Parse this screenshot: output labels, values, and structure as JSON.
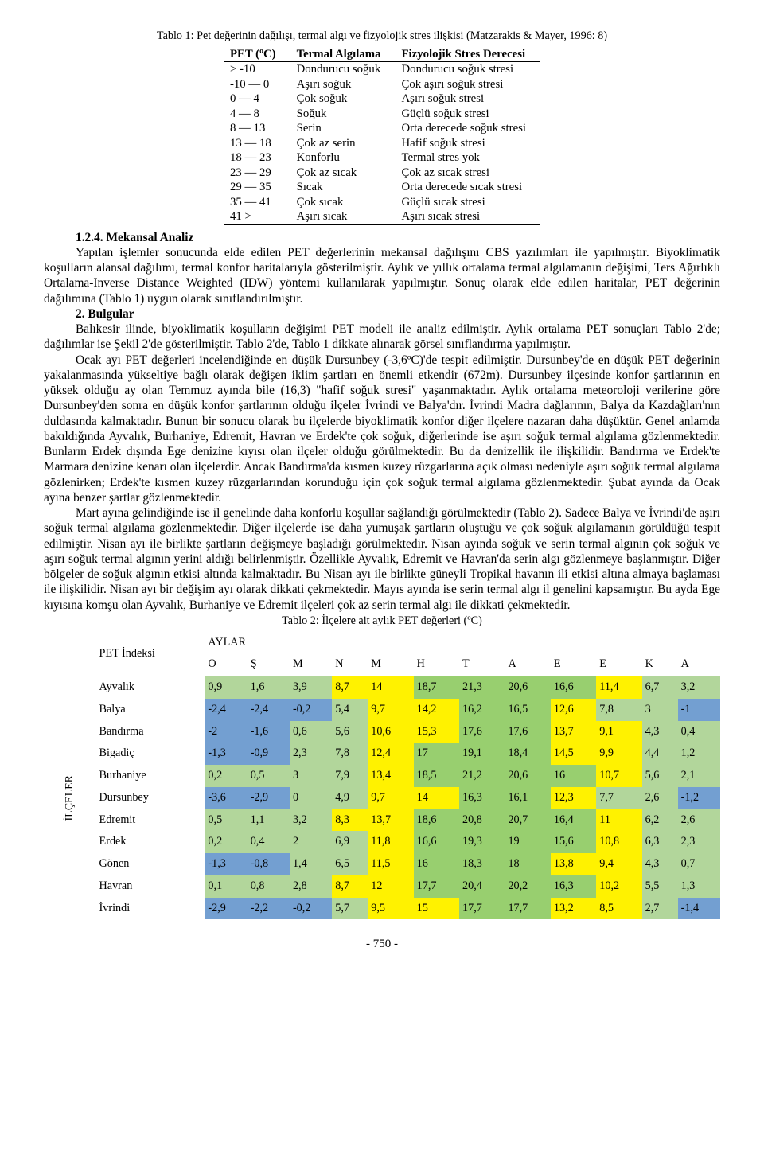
{
  "table1": {
    "caption": "Tablo 1: Pet değerinin dağılışı, termal algı ve fizyolojik stres ilişkisi (Matzarakis & Mayer, 1996: 8)",
    "headers": [
      "PET (ºC)",
      "Termal Algılama",
      "Fizyolojik Stres Derecesi"
    ],
    "rows": [
      [
        "> -10",
        "Dondurucu soğuk",
        "Dondurucu soğuk stresi"
      ],
      [
        "-10 — 0",
        "Aşırı soğuk",
        "Çok aşırı soğuk stresi"
      ],
      [
        "0 — 4",
        "Çok soğuk",
        "Aşırı soğuk stresi"
      ],
      [
        "4 — 8",
        "Soğuk",
        "Güçlü soğuk stresi"
      ],
      [
        "8 — 13",
        "Serin",
        "Orta derecede soğuk stresi"
      ],
      [
        "13 — 18",
        "Çok az serin",
        "Hafif soğuk stresi"
      ],
      [
        "18 — 23",
        "Konforlu",
        "Termal stres yok"
      ],
      [
        "23 — 29",
        "Çok az sıcak",
        "Çok az sıcak stresi"
      ],
      [
        "29 — 35",
        "Sıcak",
        "Orta derecede sıcak stresi"
      ],
      [
        "35 — 41",
        "Çok sıcak",
        "Güçlü sıcak stresi"
      ],
      [
        "41 >",
        "Aşırı sıcak",
        "Aşırı sıcak stresi"
      ]
    ]
  },
  "sec1_head": "1.2.4. Mekansal Analiz",
  "para1": "Yapılan işlemler sonucunda elde edilen PET değerlerinin mekansal dağılışını CBS yazılımları ile yapılmıştır. Biyoklimatik koşulların alansal dağılımı, termal konfor haritalarıyla gösterilmiştir. Aylık ve yıllık ortalama termal algılamanın değişimi, Ters Ağırlıklı Ortalama-Inverse Distance Weighted (IDW) yöntemi kullanılarak yapılmıştır. Sonuç olarak elde edilen haritalar, PET değerinin dağılımına (Tablo 1) uygun olarak sınıflandırılmıştır.",
  "sec2_head": "2. Bulgular",
  "para2": "Balıkesir ilinde, biyoklimatik koşulların değişimi PET modeli ile analiz edilmiştir. Aylık ortalama PET sonuçları Tablo 2'de; dağılımlar ise Şekil 2'de gösterilmiştir. Tablo 2'de, Tablo 1 dikkate alınarak görsel sınıflandırma yapılmıştır.",
  "para3": "Ocak ayı PET değerleri incelendiğinde en düşük Dursunbey (-3,6ºC)'de tespit edilmiştir. Dursunbey'de en düşük PET değerinin yakalanmasında yükseltiye bağlı olarak değişen iklim şartları en önemli etkendir (672m). Dursunbey ilçesinde konfor şartlarının en yüksek olduğu ay olan Temmuz ayında bile (16,3) \"hafif soğuk stresi\" yaşanmaktadır. Aylık ortalama meteoroloji verilerine göre Dursunbey'den sonra en düşük konfor şartlarının olduğu ilçeler İvrindi ve Balya'dır. İvrindi Madra dağlarının, Balya da Kazdağları'nın duldasında kalmaktadır. Bunun bir sonucu olarak bu ilçelerde biyoklimatik konfor diğer ilçelere nazaran daha düşüktür. Genel anlamda bakıldığında Ayvalık, Burhaniye, Edremit, Havran ve Erdek'te çok soğuk, diğerlerinde ise aşırı soğuk termal algılama gözlenmektedir. Bunların Erdek dışında Ege denizine kıyısı olan ilçeler olduğu görülmektedir. Bu da denizellik ile ilişkilidir. Bandırma ve Erdek'te Marmara denizine kenarı olan ilçelerdir. Ancak Bandırma'da kısmen kuzey rüzgarlarına açık olması nedeniyle aşırı soğuk termal algılama gözlenirken; Erdek'te kısmen kuzey rüzgarlarından korunduğu için çok soğuk termal algılama gözlenmektedir. Şubat ayında da Ocak ayına benzer şartlar gözlenmektedir.",
  "para4": "Mart ayına gelindiğinde ise il genelinde daha konforlu koşullar sağlandığı görülmektedir (Tablo 2). Sadece Balya ve İvrindi'de aşırı soğuk termal algılama gözlenmektedir. Diğer ilçelerde ise daha yumuşak şartların oluştuğu ve çok soğuk algılamanın görüldüğü tespit edilmiştir. Nisan ayı ile birlikte şartların değişmeye başladığı görülmektedir. Nisan ayında soğuk ve serin termal algının çok soğuk ve aşırı soğuk termal algının yerini aldığı belirlenmiştir. Özellikle Ayvalık, Edremit ve Havran'da serin algı gözlenmeye başlanmıştır. Diğer bölgeler de soğuk algının etkisi altında kalmaktadır. Bu Nisan ayı ile birlikte güneyli Tropikal havanın ili etkisi altına almaya başlaması ile ilişkilidir. Nisan ayı bir değişim ayı olarak dikkati çekmektedir. Mayıs ayında ise serin termal algı il genelini kapsamıştır. Bu ayda Ege kıyısına komşu olan Ayvalık, Burhaniye ve Edremit ilçeleri çok az serin termal algı ile dikkati çekmektedir.",
  "table2": {
    "caption": "Tablo 2: İlçelere ait aylık PET değerleri (ºC)",
    "side_label": "İLÇELER",
    "pet_label": "PET İndeksi",
    "aylar_label": "AYLAR",
    "months": [
      "O",
      "Ş",
      "M",
      "N",
      "M",
      "H",
      "T",
      "A",
      "E",
      "E",
      "K",
      "A"
    ],
    "rows": [
      {
        "name": "Ayvalık",
        "cells": [
          {
            "v": "0,9",
            "c": "#b2d69b"
          },
          {
            "v": "1,6",
            "c": "#b2d69b"
          },
          {
            "v": "3,9",
            "c": "#b2d69b"
          },
          {
            "v": "8,7",
            "c": "#fff200"
          },
          {
            "v": "14",
            "c": "#fff200"
          },
          {
            "v": "18,7",
            "c": "#98cf6f"
          },
          {
            "v": "21,3",
            "c": "#98cf6f"
          },
          {
            "v": "20,6",
            "c": "#98cf6f"
          },
          {
            "v": "16,6",
            "c": "#98cf6f"
          },
          {
            "v": "11,4",
            "c": "#fff200"
          },
          {
            "v": "6,7",
            "c": "#b2d69b"
          },
          {
            "v": "3,2",
            "c": "#b2d69b"
          }
        ]
      },
      {
        "name": "Balya",
        "cells": [
          {
            "v": "-2,4",
            "c": "#739fd1"
          },
          {
            "v": "-2,4",
            "c": "#739fd1"
          },
          {
            "v": "-0,2",
            "c": "#739fd1"
          },
          {
            "v": "5,4",
            "c": "#b2d69b"
          },
          {
            "v": "9,7",
            "c": "#fff200"
          },
          {
            "v": "14,2",
            "c": "#fff200"
          },
          {
            "v": "16,2",
            "c": "#98cf6f"
          },
          {
            "v": "16,5",
            "c": "#98cf6f"
          },
          {
            "v": "12,6",
            "c": "#fff200"
          },
          {
            "v": "7,8",
            "c": "#b2d69b"
          },
          {
            "v": "3",
            "c": "#b2d69b"
          },
          {
            "v": "-1",
            "c": "#739fd1"
          }
        ]
      },
      {
        "name": "Bandırma",
        "cells": [
          {
            "v": "-2",
            "c": "#739fd1"
          },
          {
            "v": "-1,6",
            "c": "#739fd1"
          },
          {
            "v": "0,6",
            "c": "#b2d69b"
          },
          {
            "v": "5,6",
            "c": "#b2d69b"
          },
          {
            "v": "10,6",
            "c": "#fff200"
          },
          {
            "v": "15,3",
            "c": "#fff200"
          },
          {
            "v": "17,6",
            "c": "#98cf6f"
          },
          {
            "v": "17,6",
            "c": "#98cf6f"
          },
          {
            "v": "13,7",
            "c": "#fff200"
          },
          {
            "v": "9,1",
            "c": "#fff200"
          },
          {
            "v": "4,3",
            "c": "#b2d69b"
          },
          {
            "v": "0,4",
            "c": "#b2d69b"
          }
        ]
      },
      {
        "name": "Bigadiç",
        "cells": [
          {
            "v": "-1,3",
            "c": "#739fd1"
          },
          {
            "v": "-0,9",
            "c": "#739fd1"
          },
          {
            "v": "2,3",
            "c": "#b2d69b"
          },
          {
            "v": "7,8",
            "c": "#b2d69b"
          },
          {
            "v": "12,4",
            "c": "#fff200"
          },
          {
            "v": "17",
            "c": "#98cf6f"
          },
          {
            "v": "19,1",
            "c": "#98cf6f"
          },
          {
            "v": "18,4",
            "c": "#98cf6f"
          },
          {
            "v": "14,5",
            "c": "#fff200"
          },
          {
            "v": "9,9",
            "c": "#fff200"
          },
          {
            "v": "4,4",
            "c": "#b2d69b"
          },
          {
            "v": "1,2",
            "c": "#b2d69b"
          }
        ]
      },
      {
        "name": "Burhaniye",
        "cells": [
          {
            "v": "0,2",
            "c": "#b2d69b"
          },
          {
            "v": "0,5",
            "c": "#b2d69b"
          },
          {
            "v": "3",
            "c": "#b2d69b"
          },
          {
            "v": "7,9",
            "c": "#b2d69b"
          },
          {
            "v": "13,4",
            "c": "#fff200"
          },
          {
            "v": "18,5",
            "c": "#98cf6f"
          },
          {
            "v": "21,2",
            "c": "#98cf6f"
          },
          {
            "v": "20,6",
            "c": "#98cf6f"
          },
          {
            "v": "16",
            "c": "#98cf6f"
          },
          {
            "v": "10,7",
            "c": "#fff200"
          },
          {
            "v": "5,6",
            "c": "#b2d69b"
          },
          {
            "v": "2,1",
            "c": "#b2d69b"
          }
        ]
      },
      {
        "name": "Dursunbey",
        "cells": [
          {
            "v": "-3,6",
            "c": "#739fd1"
          },
          {
            "v": "-2,9",
            "c": "#739fd1"
          },
          {
            "v": "0",
            "c": "#b2d69b"
          },
          {
            "v": "4,9",
            "c": "#b2d69b"
          },
          {
            "v": "9,7",
            "c": "#fff200"
          },
          {
            "v": "14",
            "c": "#fff200"
          },
          {
            "v": "16,3",
            "c": "#98cf6f"
          },
          {
            "v": "16,1",
            "c": "#98cf6f"
          },
          {
            "v": "12,3",
            "c": "#fff200"
          },
          {
            "v": "7,7",
            "c": "#b2d69b"
          },
          {
            "v": "2,6",
            "c": "#b2d69b"
          },
          {
            "v": "-1,2",
            "c": "#739fd1"
          }
        ]
      },
      {
        "name": "Edremit",
        "cells": [
          {
            "v": "0,5",
            "c": "#b2d69b"
          },
          {
            "v": "1,1",
            "c": "#b2d69b"
          },
          {
            "v": "3,2",
            "c": "#b2d69b"
          },
          {
            "v": "8,3",
            "c": "#fff200"
          },
          {
            "v": "13,7",
            "c": "#fff200"
          },
          {
            "v": "18,6",
            "c": "#98cf6f"
          },
          {
            "v": "20,8",
            "c": "#98cf6f"
          },
          {
            "v": "20,7",
            "c": "#98cf6f"
          },
          {
            "v": "16,4",
            "c": "#98cf6f"
          },
          {
            "v": "11",
            "c": "#fff200"
          },
          {
            "v": "6,2",
            "c": "#b2d69b"
          },
          {
            "v": "2,6",
            "c": "#b2d69b"
          }
        ]
      },
      {
        "name": "Erdek",
        "cells": [
          {
            "v": "0,2",
            "c": "#b2d69b"
          },
          {
            "v": "0,4",
            "c": "#b2d69b"
          },
          {
            "v": "2",
            "c": "#b2d69b"
          },
          {
            "v": "6,9",
            "c": "#b2d69b"
          },
          {
            "v": "11,8",
            "c": "#fff200"
          },
          {
            "v": "16,6",
            "c": "#98cf6f"
          },
          {
            "v": "19,3",
            "c": "#98cf6f"
          },
          {
            "v": "19",
            "c": "#98cf6f"
          },
          {
            "v": "15,6",
            "c": "#98cf6f"
          },
          {
            "v": "10,8",
            "c": "#fff200"
          },
          {
            "v": "6,3",
            "c": "#b2d69b"
          },
          {
            "v": "2,3",
            "c": "#b2d69b"
          }
        ]
      },
      {
        "name": "Gönen",
        "cells": [
          {
            "v": "-1,3",
            "c": "#739fd1"
          },
          {
            "v": "-0,8",
            "c": "#739fd1"
          },
          {
            "v": "1,4",
            "c": "#b2d69b"
          },
          {
            "v": "6,5",
            "c": "#b2d69b"
          },
          {
            "v": "11,5",
            "c": "#fff200"
          },
          {
            "v": "16",
            "c": "#98cf6f"
          },
          {
            "v": "18,3",
            "c": "#98cf6f"
          },
          {
            "v": "18",
            "c": "#98cf6f"
          },
          {
            "v": "13,8",
            "c": "#fff200"
          },
          {
            "v": "9,4",
            "c": "#fff200"
          },
          {
            "v": "4,3",
            "c": "#b2d69b"
          },
          {
            "v": "0,7",
            "c": "#b2d69b"
          }
        ]
      },
      {
        "name": "Havran",
        "cells": [
          {
            "v": "0,1",
            "c": "#b2d69b"
          },
          {
            "v": "0,8",
            "c": "#b2d69b"
          },
          {
            "v": "2,8",
            "c": "#b2d69b"
          },
          {
            "v": "8,7",
            "c": "#fff200"
          },
          {
            "v": "12",
            "c": "#fff200"
          },
          {
            "v": "17,7",
            "c": "#98cf6f"
          },
          {
            "v": "20,4",
            "c": "#98cf6f"
          },
          {
            "v": "20,2",
            "c": "#98cf6f"
          },
          {
            "v": "16,3",
            "c": "#98cf6f"
          },
          {
            "v": "10,2",
            "c": "#fff200"
          },
          {
            "v": "5,5",
            "c": "#b2d69b"
          },
          {
            "v": "1,3",
            "c": "#b2d69b"
          }
        ]
      },
      {
        "name": "İvrindi",
        "cells": [
          {
            "v": "-2,9",
            "c": "#739fd1"
          },
          {
            "v": "-2,2",
            "c": "#739fd1"
          },
          {
            "v": "-0,2",
            "c": "#739fd1"
          },
          {
            "v": "5,7",
            "c": "#b2d69b"
          },
          {
            "v": "9,5",
            "c": "#fff200"
          },
          {
            "v": "15",
            "c": "#fff200"
          },
          {
            "v": "17,7",
            "c": "#98cf6f"
          },
          {
            "v": "17,7",
            "c": "#98cf6f"
          },
          {
            "v": "13,2",
            "c": "#fff200"
          },
          {
            "v": "8,5",
            "c": "#fff200"
          },
          {
            "v": "2,7",
            "c": "#b2d69b"
          },
          {
            "v": "-1,4",
            "c": "#739fd1"
          }
        ]
      }
    ]
  },
  "page_number": "- 750 -"
}
